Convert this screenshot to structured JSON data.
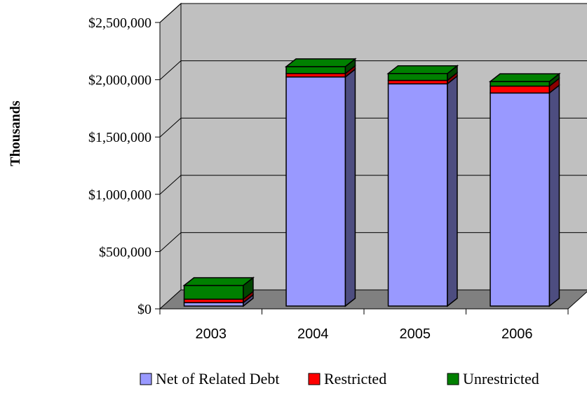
{
  "chart_data": {
    "type": "bar",
    "stacked": true,
    "three_d": true,
    "categories": [
      "2003",
      "2004",
      "2005",
      "2006"
    ],
    "series": [
      {
        "name": "Net of Related Debt",
        "color": "#9999ff",
        "values": [
          30000,
          2000000,
          1940000,
          1860000
        ]
      },
      {
        "name": "Restricted",
        "color": "#ff0000",
        "values": [
          30000,
          30000,
          30000,
          60000
        ]
      },
      {
        "name": "Unrestricted",
        "color": "#008000",
        "values": [
          120000,
          60000,
          60000,
          40000
        ]
      }
    ],
    "ylabel": "Thousands",
    "ylim": [
      0,
      2500000
    ],
    "yticks": [
      0,
      500000,
      1000000,
      1500000,
      2000000,
      2500000
    ],
    "ytick_labels": [
      "$0",
      "$500,000",
      "$1,000,000",
      "$1,500,000",
      "$2,000,000",
      "$2,500,000"
    ],
    "grid": true,
    "legend_position": "bottom",
    "colors": {
      "wall": "#c0c0c0",
      "floor": "#808080",
      "bar_side": "#4d4d80"
    }
  }
}
